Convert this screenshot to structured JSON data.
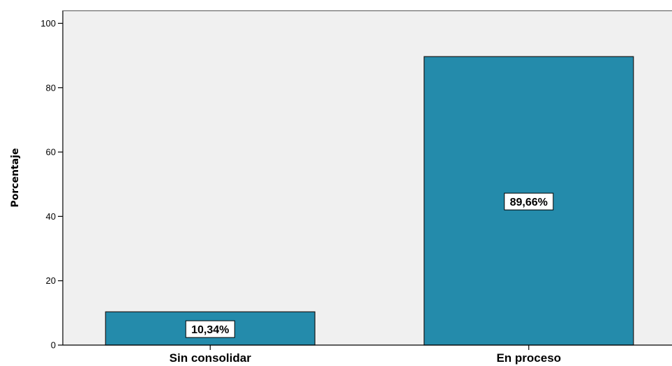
{
  "chart_data": {
    "type": "bar",
    "categories": [
      "Sin consolidar",
      "En proceso"
    ],
    "values": [
      10.34,
      89.66
    ],
    "data_labels": [
      "10,34%",
      "89,66%"
    ],
    "title": "",
    "xlabel": "",
    "ylabel": "Porcentaje",
    "ylim": [
      0,
      104
    ],
    "yticks": [
      0,
      20,
      40,
      60,
      80,
      100
    ],
    "ytick_labels": [
      "0",
      "20",
      "40",
      "60",
      "80",
      "100"
    ],
    "grid": false,
    "legend": "none",
    "colors": {
      "bar_fill": "#248bab",
      "bar_stroke": "#1a1a1a",
      "plot_background": "#f0f0f0",
      "axis": "#000000",
      "label_box_fill": "#ffffff",
      "label_box_stroke": "#000000"
    }
  }
}
